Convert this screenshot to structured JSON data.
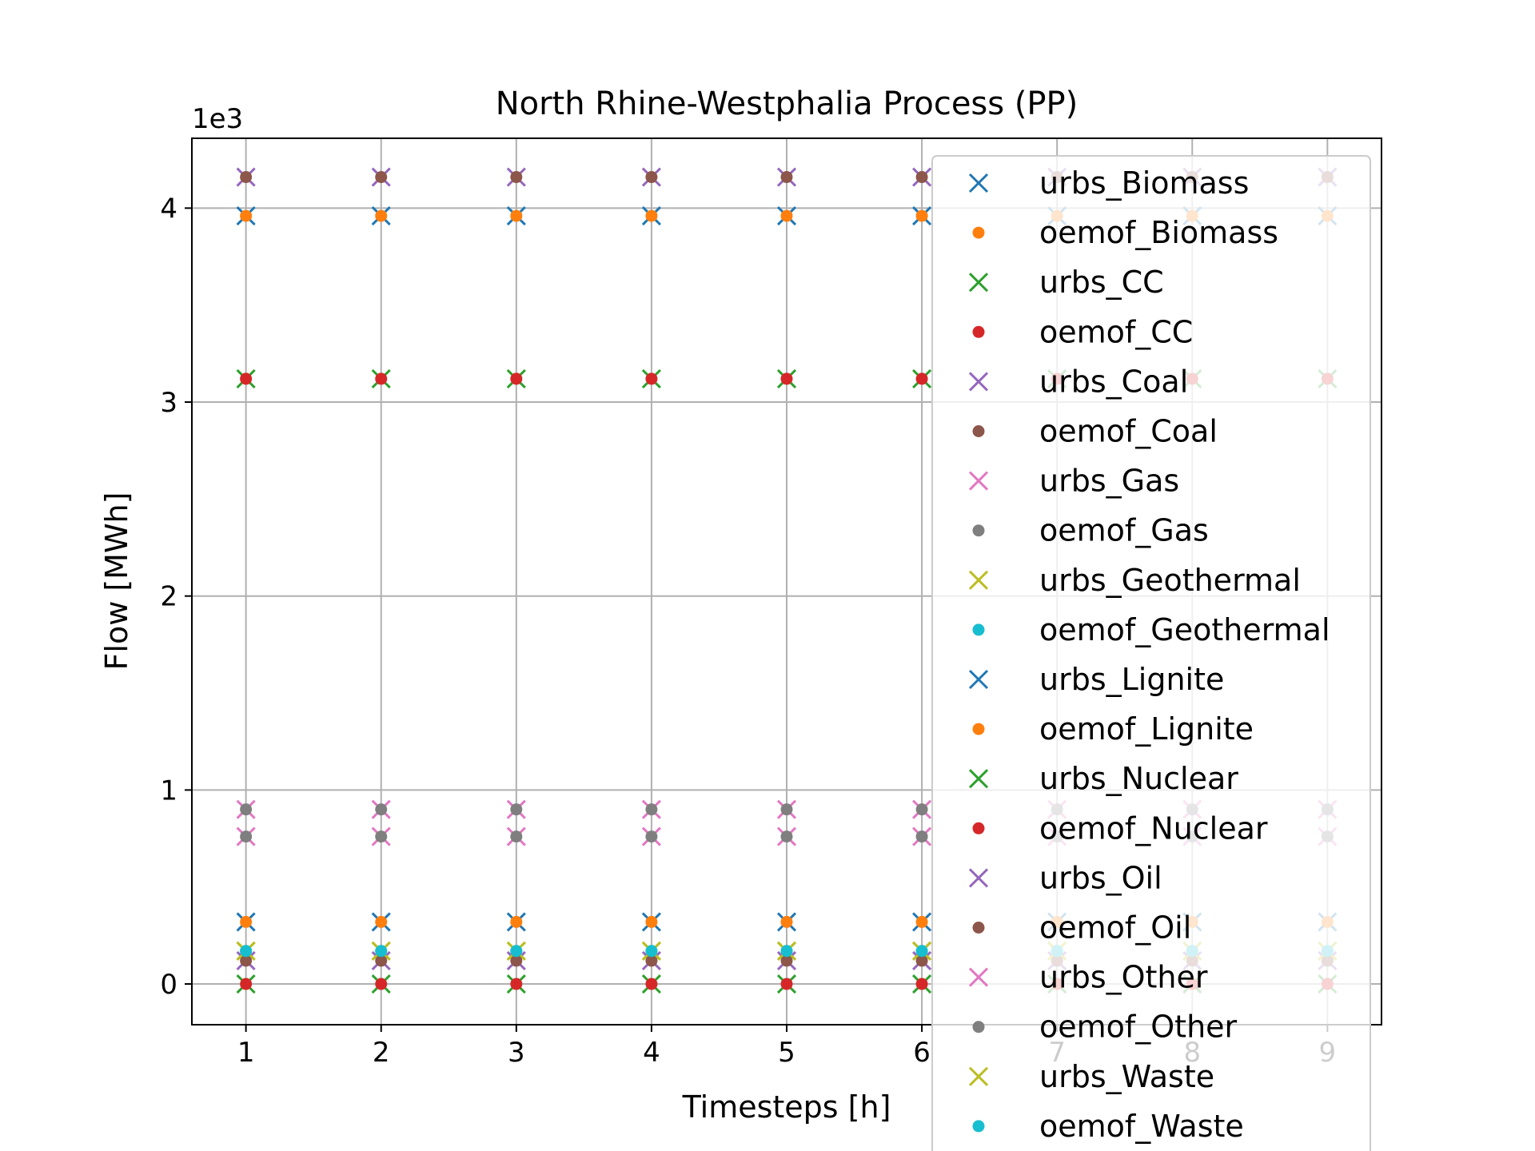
{
  "chart_data": {
    "type": "scatter",
    "title": "North Rhine-Westphalia Process (PP)",
    "xlabel": "Timesteps [h]",
    "ylabel": "Flow [MWh]",
    "y_scale_label": "1e3",
    "xlim": [
      0.6,
      9.4
    ],
    "ylim": [
      -0.21,
      4.36
    ],
    "x_ticks": [
      1,
      2,
      3,
      4,
      5,
      6,
      7,
      8,
      9
    ],
    "y_ticks": [
      0,
      1,
      2,
      3,
      4
    ],
    "grid": true,
    "legend_position": "upper-right",
    "legend_alpha": 0.8,
    "x": [
      1,
      2,
      3,
      4,
      5,
      6,
      7,
      8,
      9
    ],
    "series": [
      {
        "name": "urbs_Biomass",
        "marker": "x",
        "color": "#1f77b4",
        "values": [
          3.96,
          3.96,
          3.96,
          3.96,
          3.96,
          3.96,
          3.96,
          3.96,
          3.96
        ]
      },
      {
        "name": "oemof_Biomass",
        "marker": "dot",
        "color": "#ff7f0e",
        "values": [
          3.96,
          3.96,
          3.96,
          3.96,
          3.96,
          3.96,
          3.96,
          3.96,
          3.96
        ]
      },
      {
        "name": "urbs_CC",
        "marker": "x",
        "color": "#2ca02c",
        "values": [
          3.12,
          3.12,
          3.12,
          3.12,
          3.12,
          3.12,
          3.12,
          3.12,
          3.12
        ]
      },
      {
        "name": "oemof_CC",
        "marker": "dot",
        "color": "#d62728",
        "values": [
          3.12,
          3.12,
          3.12,
          3.12,
          3.12,
          3.12,
          3.12,
          3.12,
          3.12
        ]
      },
      {
        "name": "urbs_Coal",
        "marker": "x",
        "color": "#9467bd",
        "values": [
          4.16,
          4.16,
          4.16,
          4.16,
          4.16,
          4.16,
          4.16,
          4.16,
          4.16
        ]
      },
      {
        "name": "oemof_Coal",
        "marker": "dot",
        "color": "#8c564b",
        "values": [
          4.16,
          4.16,
          4.16,
          4.16,
          4.16,
          4.16,
          4.16,
          4.16,
          4.16
        ]
      },
      {
        "name": "urbs_Gas",
        "marker": "x",
        "color": "#e377c2",
        "values": [
          0.76,
          0.76,
          0.76,
          0.76,
          0.76,
          0.76,
          0.76,
          0.76,
          0.76
        ]
      },
      {
        "name": "oemof_Gas",
        "marker": "dot",
        "color": "#7f7f7f",
        "values": [
          0.76,
          0.76,
          0.76,
          0.76,
          0.76,
          0.76,
          0.76,
          0.76,
          0.76
        ]
      },
      {
        "name": "urbs_Geothermal",
        "marker": "x",
        "color": "#bcbd22",
        "values": [
          0.17,
          0.17,
          0.17,
          0.17,
          0.17,
          0.17,
          0.17,
          0.17,
          0.17
        ]
      },
      {
        "name": "oemof_Geothermal",
        "marker": "dot",
        "color": "#17becf",
        "values": [
          0.17,
          0.17,
          0.17,
          0.17,
          0.17,
          0.17,
          0.17,
          0.17,
          0.17
        ]
      },
      {
        "name": "urbs_Lignite",
        "marker": "x",
        "color": "#1f77b4",
        "values": [
          0.32,
          0.32,
          0.32,
          0.32,
          0.32,
          0.32,
          0.32,
          0.32,
          0.32
        ]
      },
      {
        "name": "oemof_Lignite",
        "marker": "dot",
        "color": "#ff7f0e",
        "values": [
          0.32,
          0.32,
          0.32,
          0.32,
          0.32,
          0.32,
          0.32,
          0.32,
          0.32
        ]
      },
      {
        "name": "urbs_Nuclear",
        "marker": "x",
        "color": "#2ca02c",
        "values": [
          0.0,
          0.0,
          0.0,
          0.0,
          0.0,
          0.0,
          0.0,
          0.0,
          0.0
        ]
      },
      {
        "name": "oemof_Nuclear",
        "marker": "dot",
        "color": "#d62728",
        "values": [
          0.0,
          0.0,
          0.0,
          0.0,
          0.0,
          0.0,
          0.0,
          0.0,
          0.0
        ]
      },
      {
        "name": "urbs_Oil",
        "marker": "x",
        "color": "#9467bd",
        "values": [
          0.12,
          0.12,
          0.12,
          0.12,
          0.12,
          0.12,
          0.12,
          0.12,
          0.12
        ]
      },
      {
        "name": "oemof_Oil",
        "marker": "dot",
        "color": "#8c564b",
        "values": [
          0.12,
          0.12,
          0.12,
          0.12,
          0.12,
          0.12,
          0.12,
          0.12,
          0.12
        ]
      },
      {
        "name": "urbs_Other",
        "marker": "x",
        "color": "#e377c2",
        "values": [
          0.9,
          0.9,
          0.9,
          0.9,
          0.9,
          0.9,
          0.9,
          0.9,
          0.9
        ]
      },
      {
        "name": "oemof_Other",
        "marker": "dot",
        "color": "#7f7f7f",
        "values": [
          0.9,
          0.9,
          0.9,
          0.9,
          0.9,
          0.9,
          0.9,
          0.9,
          0.9
        ]
      },
      {
        "name": "urbs_Waste",
        "marker": "x",
        "color": "#bcbd22",
        "values": [
          0.17,
          0.17,
          0.17,
          0.17,
          0.17,
          0.17,
          0.17,
          0.17,
          0.17
        ]
      },
      {
        "name": "oemof_Waste",
        "marker": "dot",
        "color": "#17becf",
        "values": [
          0.17,
          0.17,
          0.17,
          0.17,
          0.17,
          0.17,
          0.17,
          0.17,
          0.17
        ]
      }
    ]
  }
}
